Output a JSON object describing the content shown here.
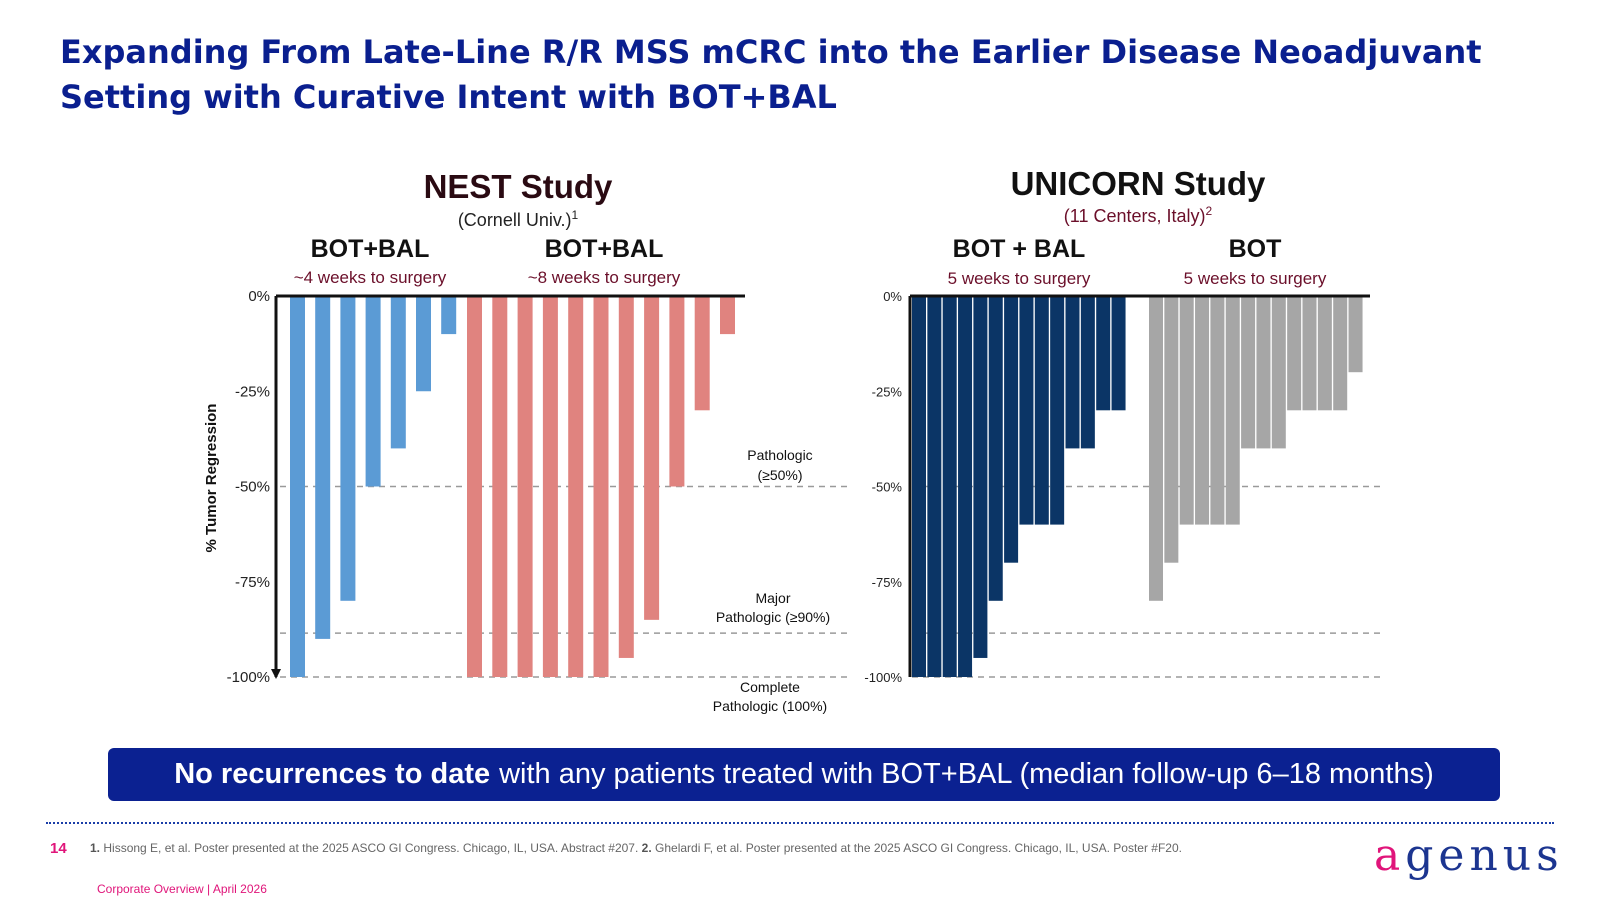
{
  "title": "Expanding From Late-Line R/R MSS mCRC into the Earlier Disease Neoadjuvant Setting with Curative Intent with BOT+BAL",
  "banner": {
    "bold": "No recurrences to date",
    "rest": "with any patients treated with BOT+BAL (median follow-up 6–18 months)"
  },
  "footer": {
    "page_number": "14",
    "ref1_num": "1.",
    "ref1_text": "Hissong E, et al. Poster presented at the 2025 ASCO GI Congress. Chicago, IL, USA. Abstract #207.",
    "ref2_num": "2.",
    "ref2_text": "Ghelardi F, et al. Poster presented at the 2025 ASCO GI Congress. Chicago, IL, USA. Poster #F20.",
    "label": "Corporate Overview | April 2026",
    "logo_first": "a",
    "logo_rest": "genus"
  },
  "colors": {
    "title": "#0a1f8f",
    "nest_4wk": "#5b9bd5",
    "nest_8wk": "#e0837f",
    "unicorn_botbal": "#0b3566",
    "unicorn_bot": "#a6a6a6",
    "subtitle_dark_red": "#6b0f2a",
    "accent_pink": "#e0157a"
  },
  "chart_data": [
    {
      "type": "bar",
      "title": "NEST Study",
      "subtitle": "(Cornell Univ.)",
      "subtitle_sup": "1",
      "ylabel": "% Tumor Regression",
      "ylim": [
        -100,
        0
      ],
      "yticks": [
        0,
        -25,
        -50,
        -75,
        -100
      ],
      "ytick_labels": [
        "0%",
        "-25%",
        "-50%",
        "-75%",
        "-100%"
      ],
      "series": [
        {
          "name": "BOT+BAL",
          "sublabel": "~4 weeks to surgery",
          "color": "#5b9bd5",
          "values": [
            -100,
            -90,
            -80,
            -50,
            -40,
            -25,
            -10
          ]
        },
        {
          "name": "BOT+BAL",
          "sublabel": "~8 weeks to surgery",
          "color": "#e0837f",
          "values": [
            -100,
            -100,
            -100,
            -100,
            -100,
            -100,
            -95,
            -85,
            -50,
            -30,
            -10
          ]
        }
      ],
      "reference_lines": [
        {
          "value": -50,
          "label": "Pathologic\n(≥50%)"
        },
        {
          "value": -88.5,
          "label": "Major\nPathologic (≥90%)"
        },
        {
          "value": -100,
          "label": "Complete\nPathologic (100%)"
        }
      ]
    },
    {
      "type": "bar",
      "title": "UNICORN Study",
      "subtitle": "(11 Centers, Italy)",
      "subtitle_sup": "2",
      "ylim": [
        -100,
        0
      ],
      "yticks": [
        0,
        -25,
        -50,
        -75,
        -100
      ],
      "ytick_labels": [
        "0%",
        "-25%",
        "-50%",
        "-75%",
        "-100%"
      ],
      "series": [
        {
          "name": "BOT + BAL",
          "sublabel": "5 weeks to surgery",
          "color": "#0b3566",
          "values": [
            -100,
            -100,
            -100,
            -100,
            -95,
            -80,
            -70,
            -60,
            -60,
            -60,
            -40,
            -40,
            -30,
            -30
          ]
        },
        {
          "name": "BOT",
          "sublabel": "5 weeks to surgery",
          "color": "#a6a6a6",
          "values": [
            -80,
            -70,
            -60,
            -60,
            -60,
            -60,
            -40,
            -40,
            -40,
            -30,
            -30,
            -30,
            -30,
            -20
          ]
        }
      ],
      "reference_lines": [
        {
          "value": -50
        },
        {
          "value": -88.5
        },
        {
          "value": -100
        }
      ]
    }
  ]
}
